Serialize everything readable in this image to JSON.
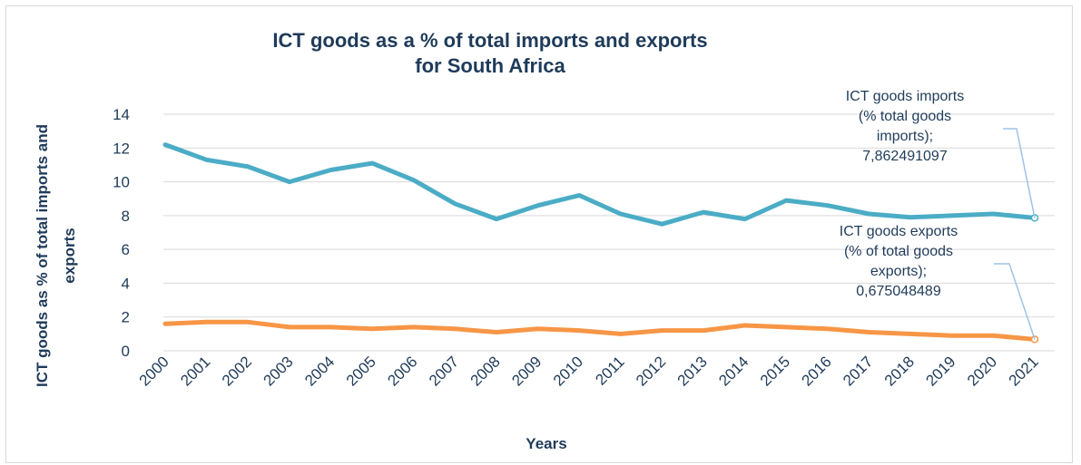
{
  "chart_data": {
    "type": "line",
    "title_lines": [
      "ICT goods as a % of total imports and exports",
      "for South Africa"
    ],
    "xlabel": "Years",
    "ylabel_lines": [
      "ICT goods as % of total  imports and",
      "exports"
    ],
    "ylim": [
      0,
      14
    ],
    "yticks": [
      0,
      2,
      4,
      6,
      8,
      10,
      12,
      14
    ],
    "grid": true,
    "categories": [
      "2000",
      "2001",
      "2002",
      "2003",
      "2004",
      "2005",
      "2006",
      "2007",
      "2008",
      "2009",
      "2010",
      "2011",
      "2012",
      "2013",
      "2014",
      "2015",
      "2016",
      "2017",
      "2018",
      "2019",
      "2020",
      "2021"
    ],
    "series": [
      {
        "name": "ICT goods imports (% total goods imports)",
        "color": "#4bacc6",
        "values": [
          12.2,
          11.3,
          10.9,
          10.0,
          10.7,
          11.1,
          10.1,
          8.7,
          7.8,
          8.6,
          9.2,
          8.1,
          7.5,
          8.2,
          7.8,
          8.9,
          8.6,
          8.1,
          7.9,
          8.0,
          8.1,
          7.862491097
        ],
        "annotation_lines": [
          "ICT  goods imports",
          "(% total goods",
          "imports);",
          "7,862491097"
        ]
      },
      {
        "name": "ICT goods exports (% of total goods exports)",
        "color": "#f79646",
        "values": [
          1.6,
          1.7,
          1.7,
          1.4,
          1.4,
          1.3,
          1.4,
          1.3,
          1.1,
          1.3,
          1.2,
          1.0,
          1.2,
          1.2,
          1.5,
          1.4,
          1.3,
          1.1,
          1.0,
          0.9,
          0.9,
          0.675048489
        ],
        "annotation_lines": [
          "ICT goods exports",
          "(% of total goods",
          "exports);",
          "0,675048489"
        ]
      }
    ]
  }
}
